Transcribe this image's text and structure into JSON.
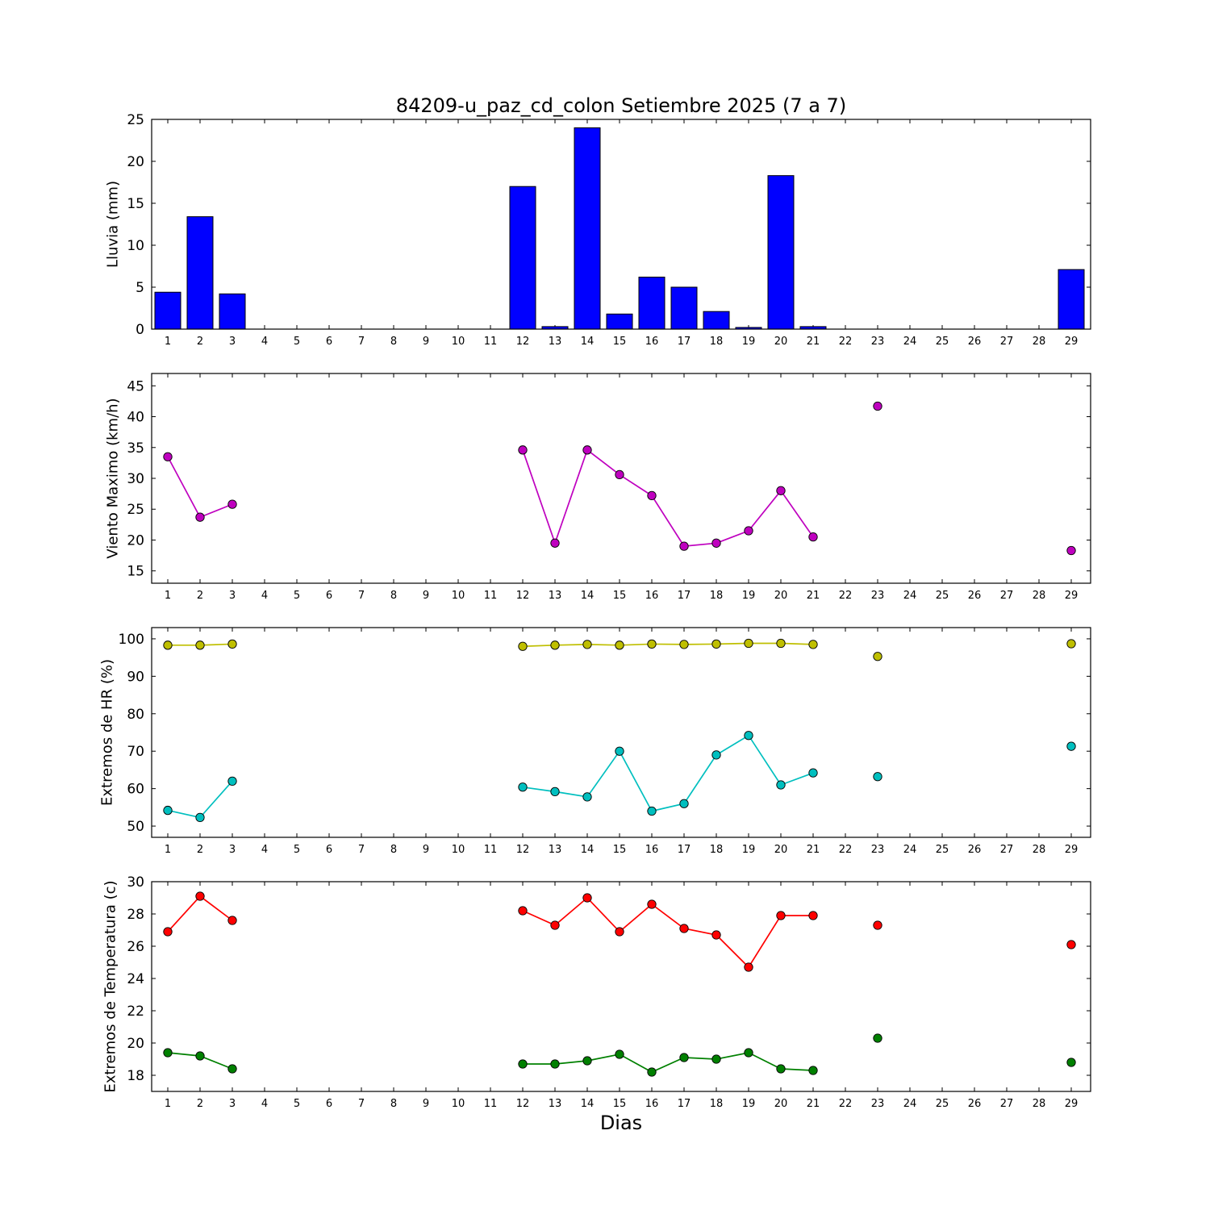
{
  "figure": {
    "title": "84209-u_paz_cd_colon Setiembre 2025  (7 a 7)",
    "xlabel": "Dias"
  },
  "chart_data": [
    {
      "type": "bar",
      "name": "lluvia",
      "ylabel": "Lluvia (mm)",
      "ylim": [
        0,
        25
      ],
      "yticks": [
        0,
        5,
        10,
        15,
        20,
        25
      ],
      "xlim": [
        0.5,
        29.6
      ],
      "xticks": [
        1,
        2,
        3,
        4,
        5,
        6,
        7,
        8,
        9,
        10,
        11,
        12,
        13,
        14,
        15,
        16,
        17,
        18,
        19,
        20,
        21,
        22,
        23,
        24,
        25,
        26,
        27,
        28,
        29
      ],
      "bar_color": "#0000ff",
      "bar_width": 0.8,
      "x": [
        1,
        2,
        3,
        12,
        13,
        14,
        15,
        16,
        17,
        18,
        19,
        20,
        21,
        29
      ],
      "values": [
        4.4,
        13.4,
        4.2,
        17.0,
        0.3,
        24.0,
        1.8,
        6.2,
        5.0,
        2.1,
        0.2,
        18.3,
        0.3,
        7.1
      ]
    },
    {
      "type": "line",
      "name": "viento",
      "ylabel": "Viento Maximo (km/h)",
      "ylim": [
        13,
        47
      ],
      "yticks": [
        15,
        20,
        25,
        30,
        35,
        40,
        45
      ],
      "xlim": [
        0.5,
        29.6
      ],
      "xticks": [
        1,
        2,
        3,
        4,
        5,
        6,
        7,
        8,
        9,
        10,
        11,
        12,
        13,
        14,
        15,
        16,
        17,
        18,
        19,
        20,
        21,
        22,
        23,
        24,
        25,
        26,
        27,
        28,
        29
      ],
      "series": [
        {
          "name": "viento-maximo",
          "color": "#bf00bf",
          "segments": [
            {
              "x": [
                1,
                2,
                3
              ],
              "y": [
                33.5,
                23.7,
                25.8
              ]
            },
            {
              "x": [
                12,
                13,
                14,
                15,
                16,
                17,
                18,
                19,
                20,
                21
              ],
              "y": [
                34.6,
                19.5,
                34.6,
                30.6,
                27.2,
                19.0,
                19.5,
                21.5,
                28.0,
                20.5
              ]
            },
            {
              "x": [
                23
              ],
              "y": [
                41.7
              ]
            },
            {
              "x": [
                29
              ],
              "y": [
                18.3
              ]
            }
          ]
        }
      ]
    },
    {
      "type": "line",
      "name": "extremos-hr",
      "ylabel": "Extremos de HR (%)",
      "ylim": [
        47,
        103
      ],
      "yticks": [
        50,
        60,
        70,
        80,
        90,
        100
      ],
      "xlim": [
        0.5,
        29.6
      ],
      "xticks": [
        1,
        2,
        3,
        4,
        5,
        6,
        7,
        8,
        9,
        10,
        11,
        12,
        13,
        14,
        15,
        16,
        17,
        18,
        19,
        20,
        21,
        22,
        23,
        24,
        25,
        26,
        27,
        28,
        29
      ],
      "series": [
        {
          "name": "hr-maxima",
          "color": "#bfbf00",
          "segments": [
            {
              "x": [
                1,
                2,
                3
              ],
              "y": [
                98.3,
                98.3,
                98.6
              ]
            },
            {
              "x": [
                12,
                13,
                14,
                15,
                16,
                17,
                18,
                19,
                20,
                21
              ],
              "y": [
                98.0,
                98.3,
                98.5,
                98.3,
                98.6,
                98.5,
                98.6,
                98.8,
                98.8,
                98.5
              ]
            },
            {
              "x": [
                23
              ],
              "y": [
                95.3
              ]
            },
            {
              "x": [
                29
              ],
              "y": [
                98.7
              ]
            }
          ]
        },
        {
          "name": "hr-minima",
          "color": "#00bfbf",
          "segments": [
            {
              "x": [
                1,
                2,
                3
              ],
              "y": [
                54.2,
                52.3,
                62.0
              ]
            },
            {
              "x": [
                12,
                13,
                14,
                15,
                16,
                17,
                18,
                19,
                20,
                21
              ],
              "y": [
                60.4,
                59.2,
                57.8,
                70.0,
                54.0,
                56.0,
                69.0,
                74.2,
                61.0,
                64.2
              ]
            },
            {
              "x": [
                23
              ],
              "y": [
                63.2
              ]
            },
            {
              "x": [
                29
              ],
              "y": [
                71.3
              ]
            }
          ]
        }
      ]
    },
    {
      "type": "line",
      "name": "extremos-temperatura",
      "ylabel": "Extremos de Temperatura (c)",
      "ylim": [
        17,
        30
      ],
      "yticks": [
        18,
        20,
        22,
        24,
        26,
        28,
        30
      ],
      "xlim": [
        0.5,
        29.6
      ],
      "xticks": [
        1,
        2,
        3,
        4,
        5,
        6,
        7,
        8,
        9,
        10,
        11,
        12,
        13,
        14,
        15,
        16,
        17,
        18,
        19,
        20,
        21,
        22,
        23,
        24,
        25,
        26,
        27,
        28,
        29
      ],
      "series": [
        {
          "name": "temperatura-maxima",
          "color": "#ff0000",
          "segments": [
            {
              "x": [
                1,
                2,
                3
              ],
              "y": [
                26.9,
                29.1,
                27.6
              ]
            },
            {
              "x": [
                12,
                13,
                14,
                15,
                16,
                17,
                18,
                19,
                20,
                21
              ],
              "y": [
                28.2,
                27.3,
                29.0,
                26.9,
                28.6,
                27.1,
                26.7,
                24.7,
                27.9,
                27.9
              ]
            },
            {
              "x": [
                23
              ],
              "y": [
                27.3
              ]
            },
            {
              "x": [
                29
              ],
              "y": [
                26.1
              ]
            }
          ]
        },
        {
          "name": "temperatura-minima",
          "color": "#008000",
          "segments": [
            {
              "x": [
                1,
                2,
                3
              ],
              "y": [
                19.4,
                19.2,
                18.4
              ]
            },
            {
              "x": [
                12,
                13,
                14,
                15,
                16,
                17,
                18,
                19,
                20,
                21
              ],
              "y": [
                18.7,
                18.7,
                18.9,
                19.3,
                18.2,
                19.1,
                19.0,
                19.4,
                18.4,
                18.3
              ]
            },
            {
              "x": [
                23
              ],
              "y": [
                20.3
              ]
            },
            {
              "x": [
                29
              ],
              "y": [
                18.8
              ]
            }
          ]
        }
      ]
    }
  ]
}
